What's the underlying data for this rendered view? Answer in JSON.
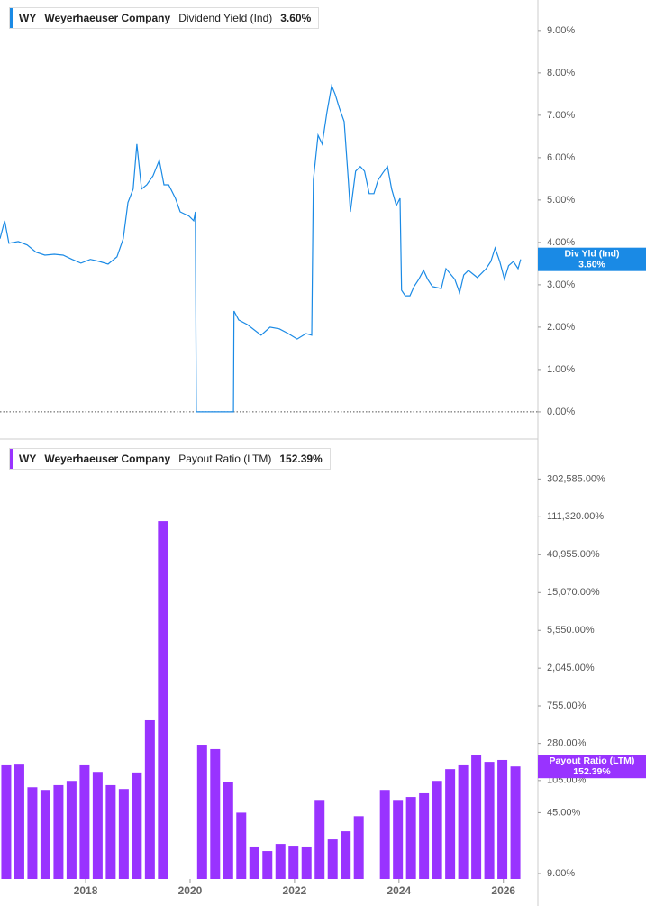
{
  "chart_data": [
    {
      "type": "line",
      "ticker": "WY",
      "company": "Weyerhaeuser Company",
      "flag_label": "Div Yld (Ind)",
      "last_label": "3.60%",
      "xlim": [
        2016.36,
        2026.66
      ],
      "ylim": [
        -0.64,
        9.72
      ],
      "yticks": [
        {
          "value": 0,
          "label": "0.00%"
        },
        {
          "value": 1,
          "label": "1.00%"
        },
        {
          "value": 2,
          "label": "2.00%"
        },
        {
          "value": 3,
          "label": "3.00%"
        },
        {
          "value": 4,
          "label": "4.00%"
        },
        {
          "value": 5,
          "label": "5.00%"
        },
        {
          "value": 6,
          "label": "6.00%"
        },
        {
          "value": 7,
          "label": "7.00%"
        },
        {
          "value": 8,
          "label": "8.00%"
        },
        {
          "value": 9,
          "label": "9.00%"
        }
      ],
      "x": [
        2016.36,
        2016.45,
        2016.53,
        2016.71,
        2016.88,
        2017.05,
        2017.22,
        2017.4,
        2017.57,
        2017.74,
        2017.91,
        2018.09,
        2018.26,
        2018.43,
        2018.6,
        2018.72,
        2018.81,
        2018.91,
        2018.98,
        2019.07,
        2019.17,
        2019.29,
        2019.41,
        2019.5,
        2019.59,
        2019.72,
        2019.81,
        2019.98,
        2020.07,
        2020.1,
        2020.12,
        2020.83,
        2020.84,
        2020.93,
        2021.1,
        2021.36,
        2021.53,
        2021.71,
        2021.88,
        2022.05,
        2022.22,
        2022.33,
        2022.36,
        2022.45,
        2022.53,
        2022.62,
        2022.71,
        2022.78,
        2022.86,
        2022.95,
        2023.03,
        2023.07,
        2023.17,
        2023.26,
        2023.34,
        2023.43,
        2023.52,
        2023.6,
        2023.69,
        2023.78,
        2023.86,
        2023.95,
        2024.02,
        2024.05,
        2024.12,
        2024.21,
        2024.29,
        2024.38,
        2024.47,
        2024.55,
        2024.64,
        2024.81,
        2024.9,
        2025.07,
        2025.16,
        2025.24,
        2025.33,
        2025.5,
        2025.67,
        2025.76,
        2025.84,
        2025.93,
        2026.02,
        2026.1,
        2026.19,
        2026.28,
        2026.33
      ],
      "series": [
        {
          "name": "Dividend Yield (Ind)",
          "color": "#1a8ae5",
          "values": [
            4.09,
            4.51,
            3.98,
            4.02,
            3.94,
            3.77,
            3.7,
            3.72,
            3.7,
            3.6,
            3.51,
            3.6,
            3.55,
            3.49,
            3.66,
            4.09,
            4.94,
            5.26,
            6.32,
            5.26,
            5.36,
            5.57,
            5.94,
            5.36,
            5.36,
            5.04,
            4.72,
            4.62,
            4.51,
            4.72,
            0,
            0,
            2.38,
            2.17,
            2.06,
            1.81,
            2.0,
            1.96,
            1.85,
            1.72,
            1.85,
            1.81,
            5.47,
            6.53,
            6.32,
            7.06,
            7.7,
            7.49,
            7.17,
            6.85,
            5.47,
            4.72,
            5.68,
            5.79,
            5.68,
            5.15,
            5.15,
            5.47,
            5.64,
            5.79,
            5.26,
            4.87,
            5.04,
            2.87,
            2.74,
            2.74,
            2.96,
            3.13,
            3.34,
            3.13,
            2.96,
            2.91,
            3.38,
            3.13,
            2.81,
            3.23,
            3.34,
            3.17,
            3.38,
            3.55,
            3.87,
            3.55,
            3.13,
            3.45,
            3.55,
            3.38,
            3.6
          ]
        }
      ]
    },
    {
      "type": "bar",
      "log": true,
      "ticker": "WY",
      "company": "Weyerhaeuser Company",
      "flag_label": "Payout Ratio (LTM)",
      "last_label": "152.39%",
      "xlim": [
        2016.36,
        2026.66
      ],
      "xticks": [
        2018,
        2020,
        2022,
        2024,
        2026
      ],
      "ylim": [
        7.8,
        810000
      ],
      "yticks": [
        {
          "value": 9,
          "label": "9.00%"
        },
        {
          "value": 45,
          "label": "45.00%"
        },
        {
          "value": 105,
          "label": "105.00%"
        },
        {
          "value": 280,
          "label": "280.00%"
        },
        {
          "value": 755,
          "label": "755.00%"
        },
        {
          "value": 2045,
          "label": "2,045.00%"
        },
        {
          "value": 5550,
          "label": "5,550.00%"
        },
        {
          "value": 15070,
          "label": "15,070.00%"
        },
        {
          "value": 40955,
          "label": "40,955.00%"
        },
        {
          "value": 111320,
          "label": "111,320.00%"
        },
        {
          "value": 302585,
          "label": "302,585.00%"
        }
      ],
      "x": [
        2016.48,
        2016.73,
        2016.98,
        2017.23,
        2017.48,
        2017.73,
        2017.98,
        2018.23,
        2018.48,
        2018.73,
        2018.98,
        2019.23,
        2019.48,
        2019.73,
        2019.98,
        2020.23,
        2020.48,
        2020.73,
        2020.98,
        2021.23,
        2021.48,
        2021.73,
        2021.98,
        2022.23,
        2022.48,
        2022.73,
        2022.98,
        2023.23,
        2023.48,
        2023.73,
        2023.98,
        2024.23,
        2024.48,
        2024.73,
        2024.98,
        2025.23,
        2025.48,
        2025.73,
        2025.98,
        2026.23
      ],
      "series": [
        {
          "name": "Payout Ratio (LTM)",
          "color": "#9933ff",
          "values": [
            157,
            160,
            88,
            82,
            93,
            104,
            157,
            132,
            93,
            84,
            130,
            516,
            99400,
            null,
            null,
            271,
            241,
            100,
            45,
            18.4,
            16.3,
            19.7,
            18.8,
            18.4,
            63,
            22.2,
            27.5,
            41,
            null,
            82,
            63,
            68,
            75,
            104,
            142,
            157,
            204,
            172,
            181,
            152.39
          ]
        }
      ]
    }
  ]
}
